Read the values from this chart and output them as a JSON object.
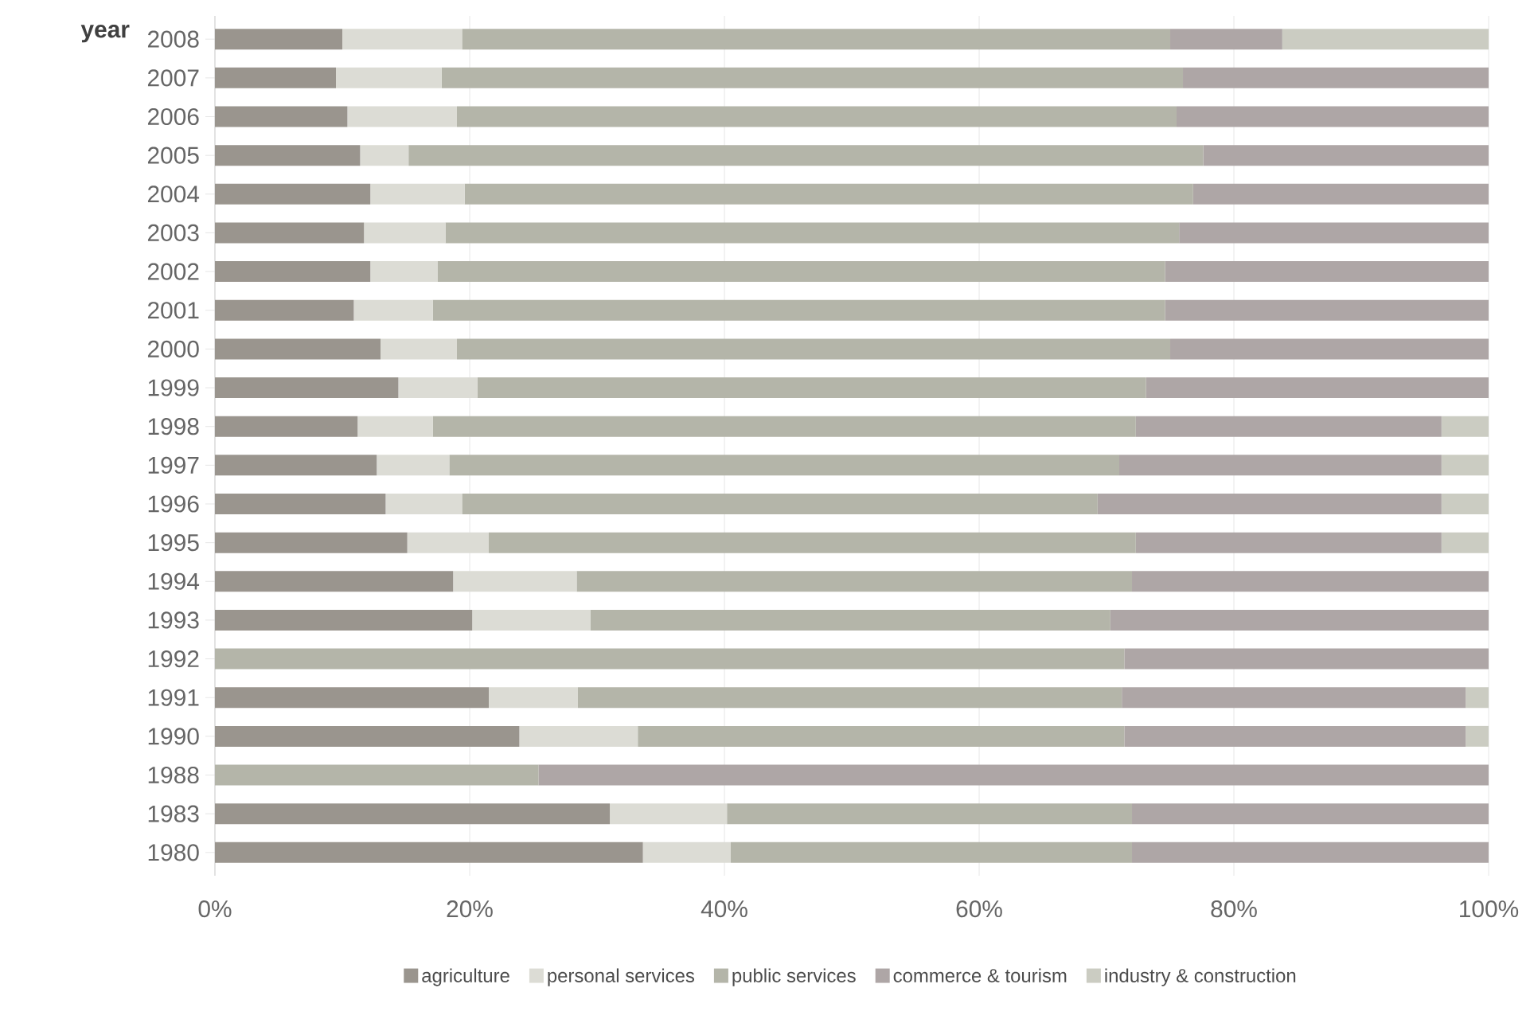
{
  "chart_data": {
    "type": "bar",
    "orientation": "horizontal",
    "stacked": true,
    "ylabel": "year",
    "categories": [
      "2008",
      "2007",
      "2006",
      "2005",
      "2004",
      "2003",
      "2002",
      "2001",
      "2000",
      "1999",
      "1998",
      "1997",
      "1996",
      "1995",
      "1994",
      "1993",
      "1992",
      "1991",
      "1990",
      "1988",
      "1983",
      "1980"
    ],
    "series": [
      {
        "name": "agriculture",
        "color": "#9a958e",
        "values": [
          10.0,
          9.5,
          10.4,
          11.4,
          12.2,
          11.7,
          12.2,
          10.9,
          13.0,
          14.4,
          11.2,
          12.7,
          13.4,
          15.1,
          18.7,
          20.2,
          0,
          21.5,
          23.9,
          0,
          31.0,
          33.6
        ]
      },
      {
        "name": "personal services",
        "color": "#dcdcd5",
        "values": [
          9.4,
          8.3,
          8.6,
          3.8,
          7.4,
          6.4,
          5.3,
          6.2,
          6.0,
          6.2,
          5.9,
          5.7,
          6.0,
          6.4,
          9.7,
          9.3,
          0,
          7.0,
          9.3,
          0,
          9.2,
          6.9
        ]
      },
      {
        "name": "public services",
        "color": "#b4b5a9",
        "values": [
          55.6,
          58.2,
          56.5,
          62.4,
          57.2,
          57.6,
          57.1,
          57.5,
          56.0,
          52.5,
          55.2,
          52.6,
          49.9,
          50.8,
          43.6,
          40.8,
          71.4,
          42.7,
          38.2,
          25.4,
          31.8,
          31.5
        ]
      },
      {
        "name": "commerce & tourism",
        "color": "#aea6a6",
        "values": [
          8.8,
          24.0,
          24.5,
          22.4,
          23.2,
          24.3,
          25.4,
          25.4,
          25.0,
          26.9,
          24.0,
          25.3,
          27.0,
          24.0,
          28.0,
          29.7,
          28.6,
          27.0,
          26.8,
          74.6,
          28.0,
          28.0
        ]
      },
      {
        "name": "industry & construction",
        "color": "#cbccc2",
        "values": [
          16.2,
          0,
          0,
          0,
          0,
          0,
          0,
          0,
          0,
          0,
          3.7,
          3.7,
          3.7,
          3.7,
          0,
          0,
          0,
          1.8,
          1.8,
          0,
          0,
          0
        ]
      }
    ],
    "xlim": [
      0,
      100
    ],
    "xticks": [
      {
        "value": 0,
        "label": "0%"
      },
      {
        "value": 20,
        "label": "20%"
      },
      {
        "value": 40,
        "label": "40%"
      },
      {
        "value": 60,
        "label": "60%"
      },
      {
        "value": 80,
        "label": "80%"
      },
      {
        "value": 100,
        "label": "100%"
      }
    ],
    "grid": "x",
    "legend": "bottom"
  }
}
